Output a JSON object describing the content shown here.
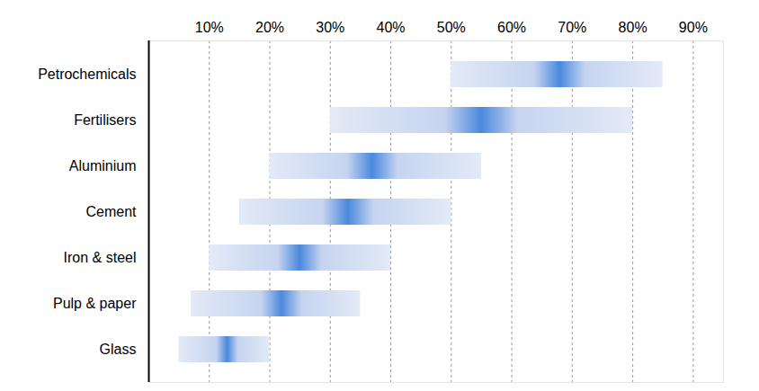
{
  "chart_data": {
    "type": "range_bar",
    "orientation": "horizontal",
    "categories": [
      "Petrochemicals",
      "Fertilisers",
      "Aluminium",
      "Cement",
      "Iron & steel",
      "Pulp & paper",
      "Glass"
    ],
    "low": [
      50,
      30,
      20,
      15,
      10,
      7,
      5
    ],
    "high": [
      85,
      80,
      55,
      50,
      40,
      35,
      20
    ],
    "peak": [
      68,
      55,
      37,
      33,
      25,
      22,
      13
    ],
    "color": "#4a89dc",
    "xlim": [
      0,
      95
    ],
    "xticks": [
      {
        "value": 10,
        "label": "10%"
      },
      {
        "value": 20,
        "label": "20%"
      },
      {
        "value": 30,
        "label": "30%"
      },
      {
        "value": 40,
        "label": "40%"
      },
      {
        "value": 50,
        "label": "50%"
      },
      {
        "value": 60,
        "label": "60%"
      },
      {
        "value": 70,
        "label": "70%"
      },
      {
        "value": 80,
        "label": "80%"
      },
      {
        "value": 90,
        "label": "90%"
      }
    ],
    "grid": true
  }
}
